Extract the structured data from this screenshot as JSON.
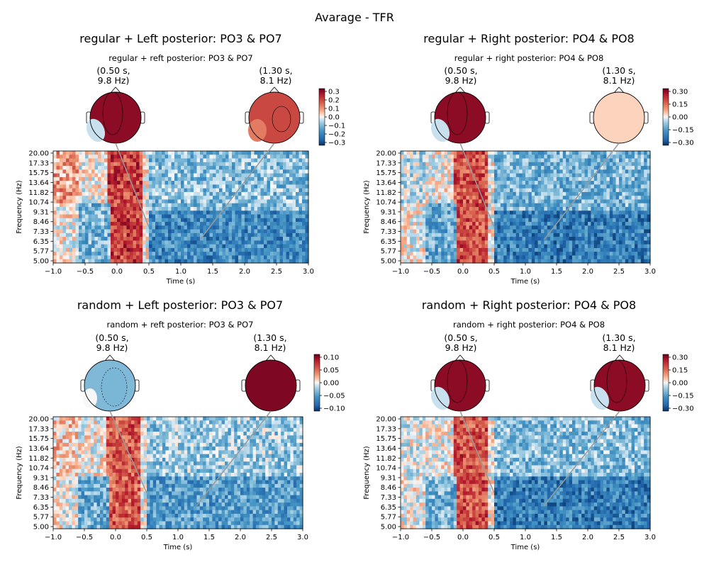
{
  "figure": {
    "suptitle": "Avarage - TFR"
  },
  "chart_data": [
    {
      "type": "heatmap",
      "title": "regular + Left posterior: PO3 & PO7",
      "subtitle": "regular + reft posterior: PO3 & PO7",
      "xlabel": "Time (s)",
      "ylabel": "Frequency (Hz)",
      "xlim": [
        -1.0,
        3.0
      ],
      "x_ticks": [
        "−1.0",
        "−0.5",
        "0.0",
        "0.5",
        "1.0",
        "1.5",
        "2.0",
        "2.5",
        "3.0"
      ],
      "y_ticks": [
        "20.00",
        "17.33",
        "15.75",
        "13.64",
        "11.82",
        "10.74",
        "9.31",
        "8.46",
        "7.33",
        "6.35",
        "5.77",
        "5.00"
      ],
      "topomaps": [
        {
          "time_s": 0.5,
          "freq_hz": 9.8,
          "label": "(0.50 s,\n9.8 Hz)",
          "pattern": "left-hot",
          "level": 0.95
        },
        {
          "time_s": 1.3,
          "freq_hz": 8.1,
          "label": "(1.30 s,\n8.1 Hz)",
          "pattern": "left-warm",
          "level": 0.8
        }
      ],
      "colorbar": {
        "ticks": [
          "0.3",
          "0.2",
          "0.1",
          "0.0",
          "−0.1",
          "−0.2",
          "−0.3"
        ],
        "vmin": -0.35,
        "vmax": 0.35
      },
      "blocks": [
        {
          "t0": -1.0,
          "t1": -0.6,
          "f0": 13.0,
          "f1": 20.0,
          "value": 0.1
        },
        {
          "t0": -0.15,
          "t1": 0.4,
          "f0": 5.0,
          "f1": 20.0,
          "value": 0.22
        },
        {
          "t0": -0.6,
          "t1": -0.1,
          "f0": 5.0,
          "f1": 13.0,
          "value": -0.12
        },
        {
          "t0": 0.5,
          "t1": 3.0,
          "f0": 5.0,
          "f1": 12.0,
          "value": -0.2
        },
        {
          "t0": 0.5,
          "t1": 3.0,
          "f0": 12.0,
          "f1": 20.0,
          "value": -0.1
        }
      ]
    },
    {
      "type": "heatmap",
      "title": "regular + Right posterior: PO4 & PO8",
      "subtitle": "regular + right posterior: PO4 & PO8",
      "xlabel": "Time (s)",
      "ylabel": "Frequency (Hz)",
      "xlim": [
        -1.0,
        3.0
      ],
      "x_ticks": [
        "−1.0",
        "−0.5",
        "0.0",
        "0.5",
        "1.0",
        "1.5",
        "2.0",
        "2.5",
        "3.0"
      ],
      "y_ticks": [
        "20.00",
        "17.33",
        "15.75",
        "13.64",
        "11.82",
        "10.74",
        "9.31",
        "8.46",
        "7.33",
        "6.35",
        "5.77",
        "5.00"
      ],
      "topomaps": [
        {
          "time_s": 0.5,
          "freq_hz": 9.8,
          "label": "(0.50 s,\n9.8 Hz)",
          "pattern": "left-hot",
          "level": 0.95
        },
        {
          "time_s": 1.3,
          "freq_hz": 8.1,
          "label": "(1.30 s,\n8.1 Hz)",
          "pattern": "uniform",
          "level": 0.55
        }
      ],
      "colorbar": {
        "ticks": [
          "0.30",
          "0.15",
          "0.00",
          "−0.15",
          "−0.30"
        ],
        "vmin": -0.35,
        "vmax": 0.35
      },
      "blocks": [
        {
          "t0": -1.0,
          "t1": -0.6,
          "f0": 13.0,
          "f1": 20.0,
          "value": -0.05
        },
        {
          "t0": -0.15,
          "t1": 0.4,
          "f0": 5.0,
          "f1": 20.0,
          "value": 0.2
        },
        {
          "t0": -0.6,
          "t1": -0.1,
          "f0": 5.0,
          "f1": 13.0,
          "value": -0.14
        },
        {
          "t0": 0.5,
          "t1": 3.0,
          "f0": 5.0,
          "f1": 12.0,
          "value": -0.22
        },
        {
          "t0": 0.5,
          "t1": 3.0,
          "f0": 12.0,
          "f1": 20.0,
          "value": -0.12
        }
      ]
    },
    {
      "type": "heatmap",
      "title": "random + Left posterior: PO3 & PO7",
      "subtitle": "random + reft posterior: PO3 & PO7",
      "xlabel": "Time (s)",
      "ylabel": "Frequency (Hz)",
      "xlim": [
        -1.0,
        3.0
      ],
      "x_ticks": [
        "−1.0",
        "−0.5",
        "0.0",
        "0.5",
        "1.0",
        "1.5",
        "2.0",
        "2.5",
        "3.0"
      ],
      "y_ticks": [
        "20.00",
        "17.33",
        "15.75",
        "13.64",
        "11.82",
        "10.74",
        "9.31",
        "8.46",
        "7.33",
        "6.35",
        "5.77",
        "5.00"
      ],
      "topomaps": [
        {
          "time_s": 0.5,
          "freq_hz": 9.8,
          "label": "(0.50 s,\n9.8 Hz)",
          "pattern": "light-blue",
          "level": 0.35
        },
        {
          "time_s": 1.3,
          "freq_hz": 8.1,
          "label": "(1.30 s,\n8.1 Hz)",
          "pattern": "uniform-hot",
          "level": 0.97
        }
      ],
      "colorbar": {
        "ticks": [
          "0.10",
          "0.05",
          "0.00",
          "−0.05",
          "−0.10"
        ],
        "vmin": -0.13,
        "vmax": 0.13
      },
      "blocks": [
        {
          "t0": -1.0,
          "t1": -0.6,
          "f0": 12.0,
          "f1": 20.0,
          "value": 0.02
        },
        {
          "t0": -0.15,
          "t1": 0.4,
          "f0": 5.0,
          "f1": 20.0,
          "value": 0.07
        },
        {
          "t0": -0.6,
          "t1": -0.1,
          "f0": 5.0,
          "f1": 12.0,
          "value": -0.05
        },
        {
          "t0": 0.5,
          "t1": 3.0,
          "f0": 5.0,
          "f1": 12.0,
          "value": -0.06
        },
        {
          "t0": 0.5,
          "t1": 3.0,
          "f0": 12.0,
          "f1": 20.0,
          "value": -0.03
        }
      ]
    },
    {
      "type": "heatmap",
      "title": "random + Right posterior: PO4 & PO8",
      "subtitle": "random + right posterior: PO4 & PO8",
      "xlabel": "Time (s)",
      "ylabel": "Frequency (Hz)",
      "xlim": [
        -1.0,
        3.0
      ],
      "x_ticks": [
        "−1.0",
        "−0.5",
        "0.0",
        "0.5",
        "1.0",
        "1.5",
        "2.0",
        "2.5",
        "3.0"
      ],
      "y_ticks": [
        "20.00",
        "17.33",
        "15.75",
        "13.64",
        "11.82",
        "10.74",
        "9.31",
        "8.46",
        "7.33",
        "6.35",
        "5.77",
        "5.00"
      ],
      "topomaps": [
        {
          "time_s": 0.5,
          "freq_hz": 9.8,
          "label": "(0.50 s,\n9.8 Hz)",
          "pattern": "left-hot",
          "level": 0.95
        },
        {
          "time_s": 1.3,
          "freq_hz": 8.1,
          "label": "(1.30 s,\n8.1 Hz)",
          "pattern": "left-hot",
          "level": 0.95
        }
      ],
      "colorbar": {
        "ticks": [
          "0.30",
          "0.15",
          "0.00",
          "−0.15",
          "−0.30"
        ],
        "vmin": -0.35,
        "vmax": 0.35
      },
      "blocks": [
        {
          "t0": -1.0,
          "t1": -0.6,
          "f0": 12.0,
          "f1": 20.0,
          "value": -0.02
        },
        {
          "t0": -0.15,
          "t1": 0.4,
          "f0": 5.0,
          "f1": 20.0,
          "value": 0.2
        },
        {
          "t0": -0.6,
          "t1": -0.1,
          "f0": 5.0,
          "f1": 12.0,
          "value": -0.12
        },
        {
          "t0": 0.5,
          "t1": 3.0,
          "f0": 5.0,
          "f1": 12.0,
          "value": -0.22
        },
        {
          "t0": 0.5,
          "t1": 3.0,
          "f0": 12.0,
          "f1": 20.0,
          "value": -0.1
        }
      ]
    }
  ]
}
